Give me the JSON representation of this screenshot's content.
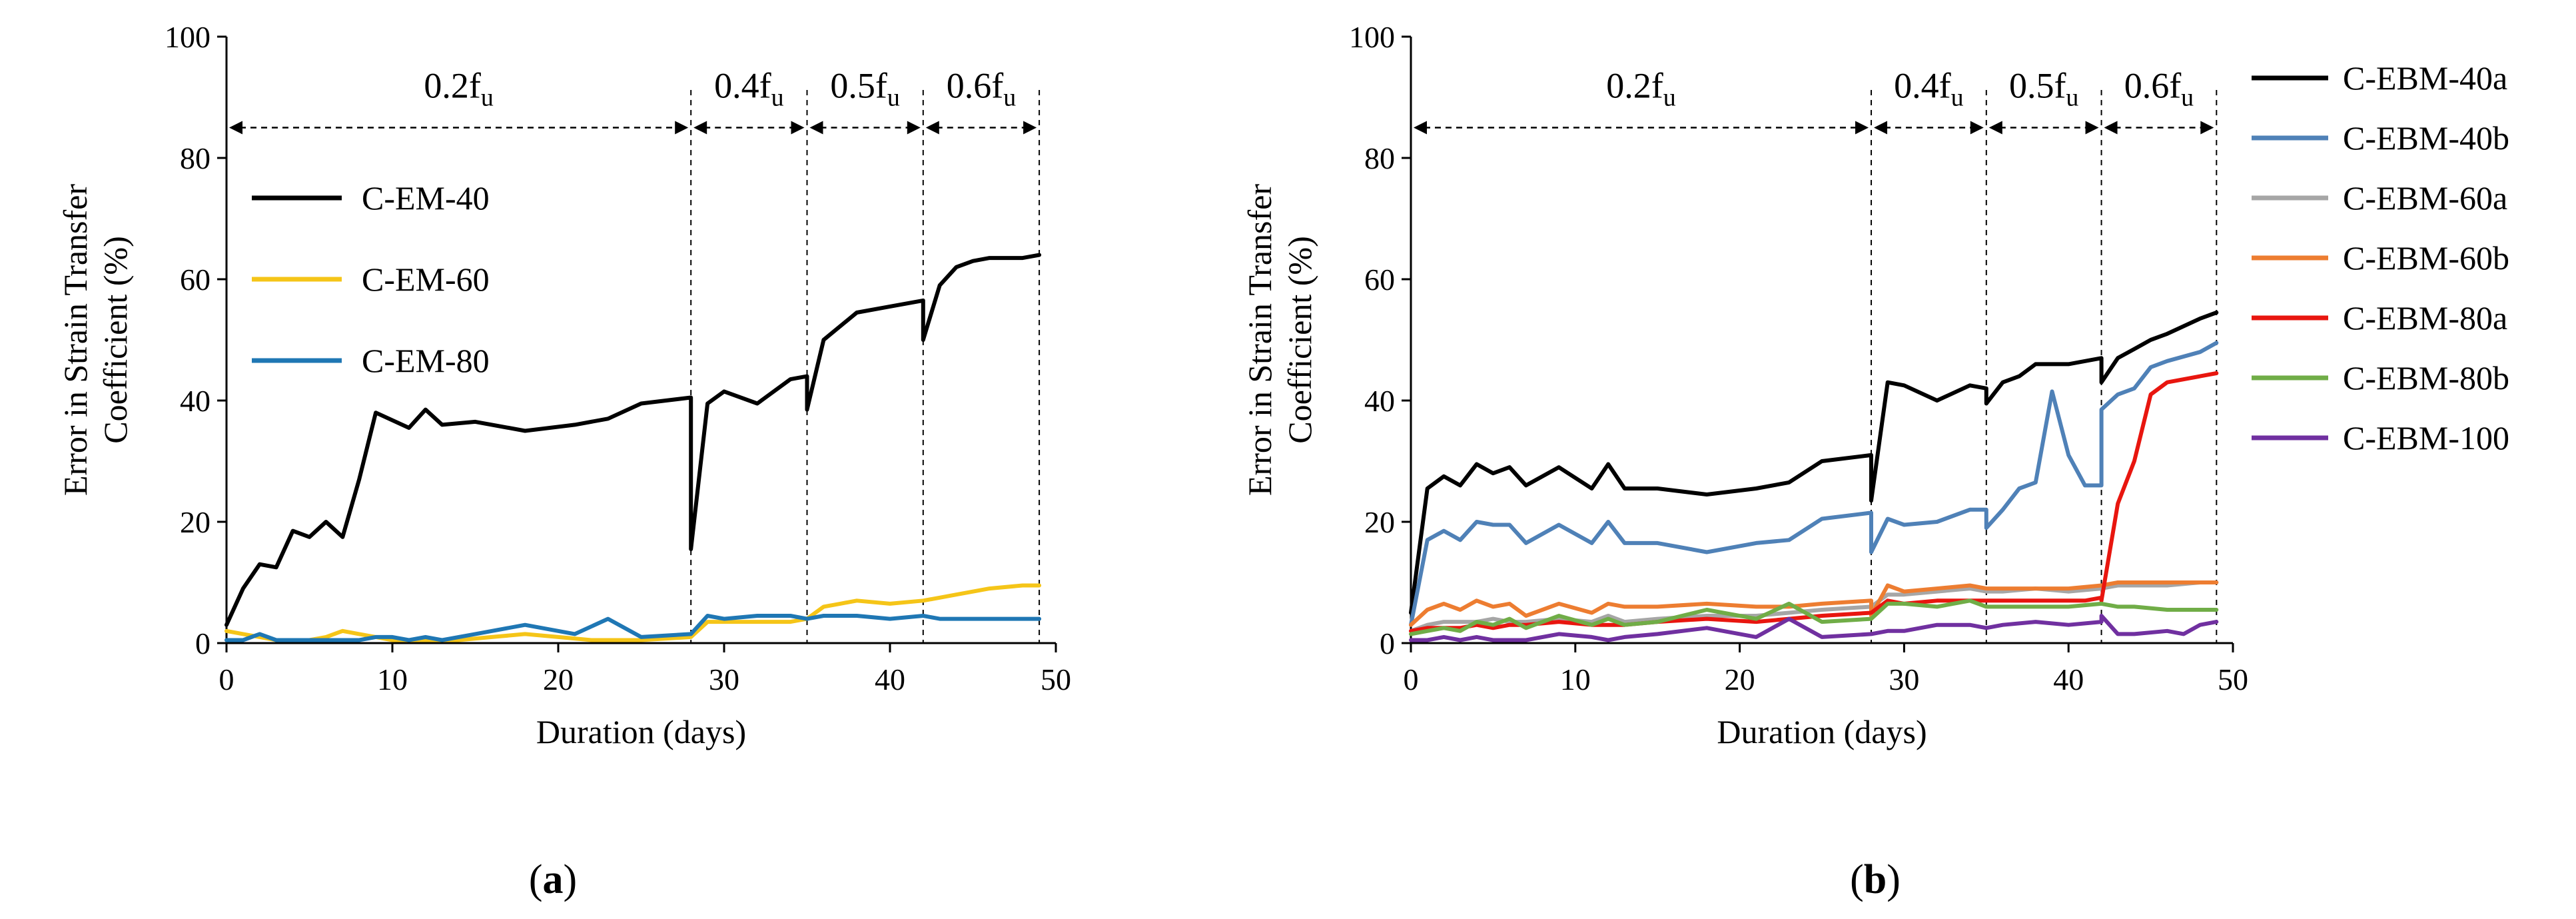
{
  "chart_data": [
    {
      "type": "line",
      "panel_label": "(a)",
      "panel_label_bold": "a",
      "xlabel": "Duration (days)",
      "ylabel": [
        "Error in Strain Transfer",
        "Coefficient (%)"
      ],
      "xlim": [
        0,
        50
      ],
      "ylim": [
        0,
        100
      ],
      "xticks": [
        0,
        10,
        20,
        30,
        40,
        50
      ],
      "yticks": [
        0,
        20,
        40,
        60,
        80,
        100
      ],
      "grid": false,
      "legend_position": "upper-left",
      "phase_boundaries": [
        28,
        35,
        42,
        49
      ],
      "phases": [
        {
          "label": "0.2f",
          "sub": "u",
          "x_range": [
            0,
            28
          ]
        },
        {
          "label": "0.4f",
          "sub": "u",
          "x_range": [
            28,
            35
          ]
        },
        {
          "label": "0.5f",
          "sub": "u",
          "x_range": [
            35,
            42
          ]
        },
        {
          "label": "0.6f",
          "sub": "u",
          "x_range": [
            42,
            49
          ]
        }
      ],
      "series": [
        {
          "name": "C-EM-40",
          "color": "#000000",
          "x": [
            0,
            1,
            2,
            3,
            4,
            5,
            6,
            7,
            8,
            9,
            11,
            12,
            13,
            15,
            18,
            21,
            23,
            25,
            28,
            28,
            29,
            30,
            32,
            34,
            35,
            35,
            36,
            38,
            40,
            42,
            42,
            43,
            44,
            45,
            46,
            48,
            49
          ],
          "y": [
            3,
            9,
            13,
            12.5,
            18.5,
            17.5,
            20,
            17.5,
            27,
            38,
            35.5,
            38.5,
            36,
            36.5,
            35,
            36,
            37,
            39.5,
            40.5,
            15.5,
            39.5,
            41.5,
            39.5,
            43.5,
            44,
            38.5,
            50,
            54.5,
            55.5,
            56.5,
            50,
            59,
            62,
            63,
            63.5,
            63.5,
            64
          ]
        },
        {
          "name": "C-EM-60",
          "color": "#f5c518",
          "x": [
            0,
            1,
            2,
            3,
            4,
            5,
            6,
            7,
            8,
            9,
            10,
            12,
            14,
            16,
            18,
            20,
            22,
            25,
            28,
            29,
            30,
            32,
            34,
            35,
            36,
            37,
            38,
            40,
            42,
            43,
            44,
            46,
            48,
            49
          ],
          "y": [
            2,
            1.5,
            1,
            0.5,
            0.5,
            0.5,
            1,
            2,
            1.5,
            1,
            0.5,
            0.5,
            0.5,
            1,
            1.5,
            1,
            0.5,
            0.5,
            1,
            3.5,
            3.5,
            3.5,
            3.5,
            4,
            6,
            6.5,
            7,
            6.5,
            7,
            7.5,
            8,
            9,
            9.5,
            9.5
          ]
        },
        {
          "name": "C-EM-80",
          "color": "#1f77b4",
          "x": [
            0,
            1,
            2,
            3,
            4,
            5,
            6,
            7,
            8,
            9,
            10,
            11,
            12,
            13,
            15,
            18,
            21,
            23,
            25,
            28,
            29,
            30,
            32,
            34,
            35,
            36,
            38,
            40,
            42,
            43,
            44,
            46,
            48,
            49
          ],
          "y": [
            0.5,
            0.5,
            1.5,
            0.5,
            0.5,
            0.5,
            0.5,
            0.5,
            0.5,
            1,
            1,
            0.5,
            1,
            0.5,
            1.5,
            3,
            1.5,
            4,
            1,
            1.5,
            4.5,
            4,
            4.5,
            4.5,
            4,
            4.5,
            4.5,
            4,
            4.5,
            4,
            4,
            4,
            4,
            4
          ]
        }
      ]
    },
    {
      "type": "line",
      "panel_label": "(b)",
      "panel_label_bold": "b",
      "xlabel": "Duration (days)",
      "ylabel": [
        "Error in Strain Transfer",
        "Coefficient (%)"
      ],
      "xlim": [
        0,
        50
      ],
      "ylim": [
        0,
        100
      ],
      "xticks": [
        0,
        10,
        20,
        30,
        40,
        50
      ],
      "yticks": [
        0,
        20,
        40,
        60,
        80,
        100
      ],
      "grid": false,
      "legend_position": "right, outside",
      "phase_boundaries": [
        28,
        35,
        42,
        49
      ],
      "phases": [
        {
          "label": "0.2f",
          "sub": "u",
          "x_range": [
            0,
            28
          ]
        },
        {
          "label": "0.4f",
          "sub": "u",
          "x_range": [
            28,
            35
          ]
        },
        {
          "label": "0.5f",
          "sub": "u",
          "x_range": [
            35,
            42
          ]
        },
        {
          "label": "0.6f",
          "sub": "u",
          "x_range": [
            42,
            49
          ]
        }
      ],
      "series": [
        {
          "name": "C-EBM-40a",
          "color": "#000000",
          "x": [
            0,
            1,
            2,
            3,
            4,
            5,
            6,
            7,
            9,
            11,
            12,
            13,
            15,
            18,
            21,
            23,
            25,
            28,
            28,
            29,
            30,
            32,
            34,
            35,
            35,
            36,
            37,
            38,
            40,
            42,
            42,
            43,
            44,
            45,
            46,
            48,
            49
          ],
          "y": [
            5,
            25.5,
            27.5,
            26,
            29.5,
            28,
            29,
            26,
            29,
            25.5,
            29.5,
            25.5,
            25.5,
            24.5,
            25.5,
            26.5,
            30,
            31,
            23.5,
            43,
            42.5,
            40,
            42.5,
            42,
            39.5,
            43,
            44,
            46,
            46,
            47,
            43,
            47,
            48.5,
            50,
            51,
            53.5,
            54.5
          ]
        },
        {
          "name": "C-EBM-40b",
          "color": "#4f81b7",
          "x": [
            0,
            1,
            2,
            3,
            4,
            5,
            6,
            7,
            9,
            11,
            12,
            13,
            15,
            18,
            21,
            23,
            25,
            28,
            28,
            29,
            30,
            32,
            34,
            35,
            35,
            36,
            37,
            38,
            39,
            40,
            41,
            42,
            42,
            43,
            44,
            45,
            46,
            48,
            49
          ],
          "y": [
            3,
            17,
            18.5,
            17,
            20,
            19.5,
            19.5,
            16.5,
            19.5,
            16.5,
            20,
            16.5,
            16.5,
            15,
            16.5,
            17,
            20.5,
            21.5,
            15,
            20.5,
            19.5,
            20,
            22,
            22,
            19,
            22,
            25.5,
            26.5,
            41.5,
            31,
            26,
            26,
            38.5,
            41,
            42,
            45.5,
            46.5,
            48,
            49.5
          ]
        },
        {
          "name": "C-EBM-60a",
          "color": "#a6a6a6",
          "x": [
            0,
            1,
            2,
            3,
            4,
            5,
            6,
            7,
            9,
            11,
            12,
            13,
            15,
            18,
            21,
            23,
            25,
            28,
            29,
            30,
            32,
            34,
            35,
            36,
            38,
            40,
            42,
            43,
            44,
            46,
            48,
            49
          ],
          "y": [
            2,
            3,
            3.5,
            3.5,
            3.5,
            4,
            3.5,
            3.5,
            4,
            3.5,
            4.5,
            3.5,
            4,
            4.5,
            4.5,
            5,
            5.5,
            6,
            8,
            8,
            8.5,
            9,
            8.5,
            8.5,
            9,
            8.5,
            9,
            9.5,
            9.5,
            9.5,
            10,
            10
          ]
        },
        {
          "name": "C-EBM-60b",
          "color": "#ed7d31",
          "x": [
            0,
            1,
            2,
            3,
            4,
            5,
            6,
            7,
            9,
            11,
            12,
            13,
            15,
            18,
            21,
            23,
            25,
            28,
            28,
            29,
            30,
            32,
            34,
            35,
            36,
            38,
            40,
            42,
            43,
            44,
            46,
            48,
            49
          ],
          "y": [
            3,
            5.5,
            6.5,
            5.5,
            7,
            6,
            6.5,
            4.5,
            6.5,
            5,
            6.5,
            6,
            6,
            6.5,
            6,
            6,
            6.5,
            7,
            4.5,
            9.5,
            8.5,
            9,
            9.5,
            9,
            9,
            9,
            9,
            9.5,
            10,
            10,
            10,
            10,
            10
          ]
        },
        {
          "name": "C-EBM-80a",
          "color": "#e8160f",
          "x": [
            0,
            1,
            2,
            3,
            4,
            5,
            6,
            7,
            9,
            11,
            12,
            13,
            15,
            18,
            21,
            23,
            25,
            28,
            29,
            30,
            32,
            34,
            35,
            36,
            38,
            40,
            41,
            42,
            42,
            43,
            44,
            45,
            46,
            48,
            49
          ],
          "y": [
            2,
            2.5,
            2.5,
            2.5,
            3,
            2.5,
            3,
            3,
            3.5,
            3,
            3,
            3,
            3.5,
            4,
            3.5,
            4,
            4.5,
            5,
            7,
            6.5,
            7,
            7,
            7,
            7,
            7,
            7,
            7,
            7.5,
            7,
            23,
            30,
            41,
            43,
            44,
            44.5
          ]
        },
        {
          "name": "C-EBM-80b",
          "color": "#70ad47",
          "x": [
            0,
            1,
            2,
            3,
            4,
            5,
            6,
            7,
            9,
            11,
            12,
            13,
            15,
            18,
            21,
            23,
            25,
            28,
            29,
            30,
            32,
            34,
            35,
            36,
            38,
            40,
            42,
            43,
            44,
            46,
            48,
            49
          ],
          "y": [
            1.5,
            2,
            2.5,
            2,
            3.5,
            3,
            4,
            2.5,
            4.5,
            3,
            4,
            3,
            3.5,
            5.5,
            4,
            6.5,
            3.5,
            4,
            6.5,
            6.5,
            6,
            7,
            6,
            6,
            6,
            6,
            6.5,
            6,
            6,
            5.5,
            5.5,
            5.5
          ]
        },
        {
          "name": "C-EBM-100",
          "color": "#7030a0",
          "x": [
            0,
            1,
            2,
            3,
            4,
            5,
            6,
            7,
            9,
            11,
            12,
            13,
            15,
            18,
            21,
            23,
            25,
            28,
            29,
            30,
            32,
            34,
            35,
            36,
            38,
            40,
            42,
            42,
            43,
            44,
            46,
            47,
            48,
            49
          ],
          "y": [
            0.5,
            0.5,
            1,
            0.5,
            1,
            0.5,
            0.5,
            0.5,
            1.5,
            1,
            0.5,
            1,
            1.5,
            2.5,
            1,
            4,
            1,
            1.5,
            2,
            2,
            3,
            3,
            2.5,
            3,
            3.5,
            3,
            3.5,
            4.5,
            1.5,
            1.5,
            2,
            1.5,
            3,
            3.5
          ]
        }
      ]
    }
  ]
}
